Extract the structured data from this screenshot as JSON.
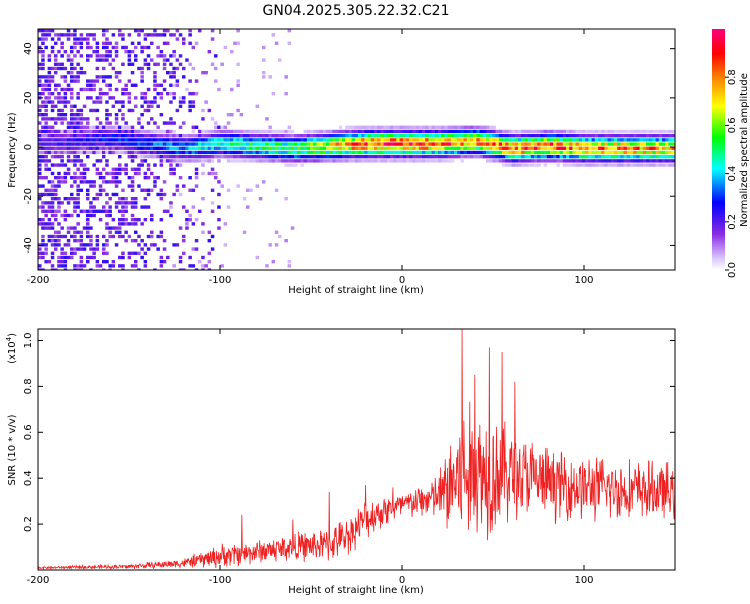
{
  "title": "GN04.2025.305.22.32.C21",
  "colors": {
    "background": "#ffffff",
    "snr_line": "#ee2222",
    "colormap": [
      "#ffffff",
      "#d9c4ff",
      "#8a2be2",
      "#0000ff",
      "#00ffff",
      "#00ff00",
      "#ffff00",
      "#ff8000",
      "#ff0000",
      "#ff0080"
    ]
  },
  "chart_data": [
    {
      "type": "heatmap",
      "xlabel": "Height of straight line (km)",
      "ylabel": "Frequency (Hz)",
      "xlim": [
        -200,
        150
      ],
      "ylim": [
        -50,
        48
      ],
      "x_ticks": [
        -200,
        -100,
        0,
        100
      ],
      "x_tick_labels": [
        "-200",
        "-100",
        "0",
        "100"
      ],
      "y_ticks": [
        -40,
        -20,
        0,
        20,
        40
      ],
      "y_tick_labels": [
        "-40",
        "-20",
        "0",
        "20",
        "40"
      ],
      "colorbar": {
        "label": "Normalized spectral amplitude",
        "range": [
          0,
          1
        ],
        "ticks": [
          0,
          0.2,
          0.4,
          0.6,
          0.8
        ],
        "tick_labels": [
          "0.0",
          "0.2",
          "0.4",
          "0.6",
          "0.8"
        ]
      },
      "ridge": {
        "description_points_x": [
          -200,
          -160,
          -140,
          -120,
          -100,
          -80,
          -60,
          -40,
          -20,
          0,
          20,
          40,
          60,
          80,
          100,
          120,
          150
        ],
        "center_freq": [
          2,
          4,
          2,
          0,
          2,
          1,
          0,
          1,
          2,
          2,
          2,
          3,
          0,
          1,
          0,
          0,
          0
        ],
        "peak_amplitude": [
          0.2,
          0.3,
          0.35,
          0.4,
          0.5,
          0.55,
          0.6,
          0.75,
          0.95,
          0.95,
          0.9,
          0.85,
          0.9,
          0.9,
          0.85,
          0.85,
          0.8
        ]
      }
    },
    {
      "type": "line",
      "xlabel": "Height of straight line (km)",
      "ylabel": "SNR (10 * v/v)",
      "y_scale_label": "(x10",
      "y_scale_exponent": "4",
      "y_scale_suffix": ")",
      "xlim": [
        -200,
        150
      ],
      "ylim": [
        0,
        1.05
      ],
      "x_ticks": [
        -200,
        -100,
        0,
        100
      ],
      "x_tick_labels": [
        "-200",
        "-100",
        "0",
        "100"
      ],
      "y_ticks": [
        0.2,
        0.4,
        0.6,
        0.8,
        1.0
      ],
      "y_tick_labels": [
        "0.2",
        "0.4",
        "0.6",
        "0.8",
        "1.0"
      ],
      "series": [
        {
          "color": "#ee2222",
          "envelope_x": [
            -200,
            -150,
            -120,
            -100,
            -80,
            -60,
            -40,
            -30,
            -20,
            -10,
            0,
            10,
            20,
            25,
            30,
            40,
            50,
            60,
            80,
            100,
            120,
            150
          ],
          "mean_y": [
            0.01,
            0.015,
            0.03,
            0.06,
            0.08,
            0.1,
            0.11,
            0.15,
            0.22,
            0.26,
            0.28,
            0.3,
            0.32,
            0.35,
            0.4,
            0.42,
            0.44,
            0.42,
            0.38,
            0.36,
            0.35,
            0.34
          ],
          "spread_y": [
            0.005,
            0.01,
            0.02,
            0.05,
            0.05,
            0.06,
            0.07,
            0.08,
            0.08,
            0.07,
            0.06,
            0.07,
            0.1,
            0.2,
            0.3,
            0.3,
            0.28,
            0.2,
            0.15,
            0.14,
            0.13,
            0.12
          ],
          "peak_x": [
            -88,
            -60,
            -40,
            -20,
            -5,
            33,
            40,
            48,
            55,
            62
          ],
          "peak_y": [
            0.24,
            0.22,
            0.34,
            0.37,
            0.36,
            1.05,
            0.85,
            0.97,
            0.95,
            0.82
          ]
        }
      ]
    }
  ]
}
